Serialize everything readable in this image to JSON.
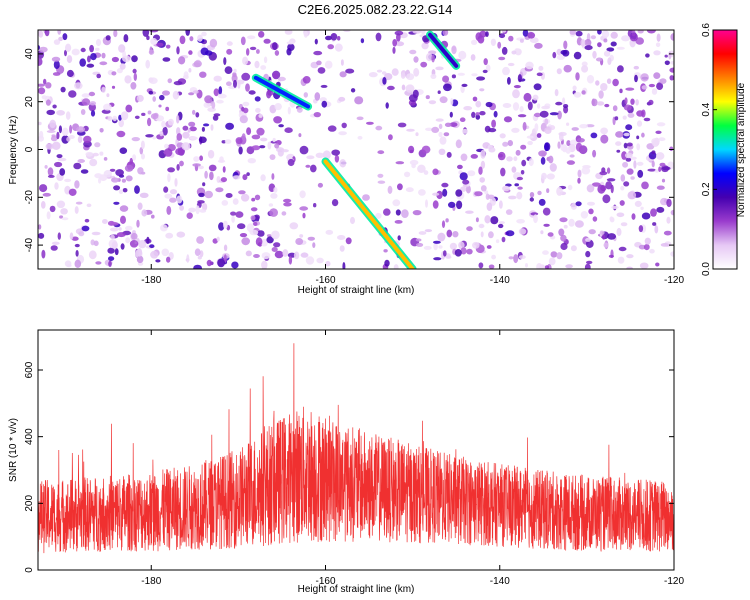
{
  "figure": {
    "title": "C2E6.2025.082.23.22.G14"
  },
  "chart_data": [
    {
      "type": "heatmap",
      "xlabel": "Height of straight line (km)",
      "ylabel": "Frequency (Hz)",
      "xlim": [
        -193,
        -120
      ],
      "ylim": [
        -50,
        50
      ],
      "xticks": [
        -180,
        -160,
        -140,
        -120
      ],
      "yticks": [
        -40,
        -20,
        0,
        20,
        40
      ],
      "colorbar": {
        "label": "Normalized spectral amplitude",
        "range": [
          0.0,
          0.6
        ],
        "ticks": [
          "0.0",
          "0.2",
          "0.4",
          "0.6"
        ],
        "colors": [
          "#ffffff",
          "#e6c8f5",
          "#9a3ccd",
          "#4400b0",
          "#0000ff",
          "#00d8ff",
          "#00ff40",
          "#ffff00",
          "#ff7f00",
          "#ff0000",
          "#ff0090"
        ]
      },
      "features": [
        {
          "name": "",
          "x": [
            -160,
            -150
          ],
          "y": [
            -5,
            -50
          ],
          "amplitude": 0.45
        },
        {
          "name": "",
          "x": [
            -168,
            -162
          ],
          "y": [
            30,
            18
          ],
          "amplitude": 0.25
        },
        {
          "name": "",
          "x": [
            -148,
            -145
          ],
          "y": [
            48,
            35
          ],
          "amplitude": 0.2
        }
      ]
    },
    {
      "type": "line",
      "xlabel": "Height of straight line (km)",
      "ylabel": "SNR (10 * v/v)",
      "xlim": [
        -193,
        -120
      ],
      "ylim": [
        0,
        720
      ],
      "xticks": [
        -180,
        -160,
        -140,
        -120
      ],
      "yticks": [
        0,
        200,
        400,
        600
      ],
      "line_color": "#f03030",
      "envelope": {
        "x": [
          -193,
          -185,
          -180,
          -175,
          -170,
          -167,
          -164,
          -162,
          -160,
          -158,
          -155,
          -150,
          -145,
          -140,
          -135,
          -130,
          -125,
          -120
        ],
        "mean": [
          160,
          170,
          175,
          190,
          215,
          250,
          280,
          290,
          275,
          265,
          250,
          230,
          210,
          195,
          180,
          170,
          165,
          160
        ],
        "spread": [
          110,
          115,
          120,
          130,
          150,
          180,
          200,
          210,
          195,
          180,
          165,
          150,
          135,
          125,
          120,
          115,
          110,
          110
        ]
      }
    }
  ]
}
